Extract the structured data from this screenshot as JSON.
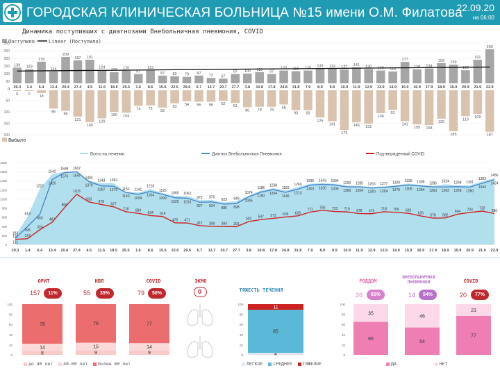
{
  "header": {
    "title": "ГОРОДСКАЯ КЛИНИЧЕСКАЯ БОЛЬНИЦА №15 имени О.М. Филатова",
    "date": "22.09.20",
    "time": "на 06:00"
  },
  "subtitle": "Динамика поступивших с диагнозами Внебольничная пневмония, COVID",
  "dates": [
    "29.3",
    "1.4",
    "6.4",
    "13.4",
    "20.4",
    "27.4",
    "4.5",
    "11.5",
    "18.5",
    "25.5",
    "1.6",
    "8.6",
    "15.6",
    "22.6",
    "29.6",
    "6.7",
    "13.7",
    "20.7",
    "27.7",
    "3.8",
    "10.8",
    "17.8",
    "24.8",
    "31.8",
    "7.9",
    "8.9",
    "9.9",
    "10.9",
    "11.9",
    "12.9",
    "13.9",
    "14.9",
    "15.9",
    "16.9",
    "17.9",
    "18.9",
    "19.9",
    "20.9",
    "21.9",
    "22.9"
  ],
  "colors": {
    "header": "#1f9bb3",
    "admitted": "#a6a6a6",
    "discharged": "#d9c3ae",
    "total_area": "#a8dcec",
    "pneumonia_line": "#4a86c8",
    "covid_line": "#cc2222",
    "red_pill": "#c0282d",
    "red_bar": "#ec6d6d",
    "pink_bar": "#ef7fb2",
    "pink_pill": "#d881c9",
    "blue_bar": "#5bb8d6"
  },
  "chart_data": [
    {
      "type": "bar",
      "name": "admitted",
      "legend": [
        "Поступило",
        "Linear (Поступило)"
      ],
      "ylim": [
        0,
        300
      ],
      "yticks": [
        0,
        50,
        100,
        150,
        200,
        250,
        300
      ],
      "values": [
        139,
        129,
        178,
        114,
        209,
        187,
        191,
        124,
        109,
        120,
        97,
        123,
        87,
        82,
        79,
        87,
        72,
        67,
        97,
        100,
        110,
        97,
        120,
        116,
        120,
        133,
        132,
        127,
        141,
        130,
        120,
        114,
        177,
        128,
        134,
        169,
        159,
        122,
        191,
        260
      ]
    },
    {
      "type": "bar",
      "name": "discharged",
      "legend": [
        "Выбыло"
      ],
      "ylim": [
        -200,
        0
      ],
      "yticks": [
        0,
        -50,
        -100,
        -150,
        -200
      ],
      "tick_labels": [
        "0",
        "50",
        "100",
        "150",
        "200"
      ],
      "values": [
        0,
        0,
        18,
        86,
        96,
        121,
        145,
        129,
        100,
        104,
        74,
        72,
        82,
        63,
        54,
        56,
        56,
        52,
        61,
        80,
        78,
        78,
        68,
        93,
        93,
        125,
        141,
        179,
        146,
        152,
        106,
        91,
        141,
        155,
        158,
        130,
        185,
        119,
        109,
        187
      ]
    },
    {
      "type": "line",
      "name": "inpatients",
      "ylim": [
        0,
        1800
      ],
      "yticks": [
        0,
        200,
        400,
        600,
        800,
        1000,
        1200,
        1400,
        1600,
        1800
      ],
      "legend": [
        "Всего на лечении",
        "Диагноз Внебольничная Пневмония",
        "Подтвержденный COVID"
      ],
      "series": [
        {
          "name": "Всего на лечении",
          "values": [
            183,
            613,
            1222,
            1542,
            1598,
            1607,
            1404,
            1343,
            1352,
            1152,
            1141,
            1218,
            1125,
            1065,
            1062,
            972,
            976,
            923,
            949,
            1074,
            1186,
            1238,
            1183,
            1260,
            1335,
            1343,
            1334,
            1290,
            1285,
            1263,
            1277,
            1300,
            1336,
            1309,
            1285,
            1324,
            1298,
            1301,
            1383,
            1456
          ]
        },
        {
          "name": "Диагноз Внебольничная Пневмония",
          "values": [
            131,
            395,
            663,
            1425,
            1576,
            1597,
            1379,
            1287,
            1279,
            1143,
            1099,
            1164,
            1099,
            1025,
            1016,
            927,
            934,
            886,
            898,
            1045,
            1150,
            1204,
            1146,
            1213,
            1303,
            1320,
            1306,
            1265,
            1264,
            1240,
            1254,
            1279,
            1306,
            1284,
            1263,
            1263,
            1268,
            1260,
            1344,
            1424
          ]
        },
        {
          "name": "Подтвержденный COVID",
          "values": [
            111,
            127,
            324,
            487,
            806,
            1103,
            933,
            878,
            827,
            718,
            684,
            634,
            614,
            475,
            471,
            412,
            398,
            393,
            391,
            502,
            547,
            573,
            603,
            628,
            711,
            750,
            723,
            715,
            678,
            675,
            718,
            706,
            683,
            626,
            578,
            582,
            664,
            703,
            732,
            680
          ]
        }
      ]
    },
    {
      "type": "bar",
      "name": "orit",
      "title": "ОРИТ",
      "count": "157",
      "pct": "11%",
      "stack": [
        {
          "label": "до 40 лет",
          "value": 8
        },
        {
          "label": "40-60 лет",
          "value": 14
        },
        {
          "label": "более 60 лет",
          "value": 78
        }
      ]
    },
    {
      "type": "bar",
      "name": "ivl",
      "title": "ИВЛ",
      "count": "55",
      "pct": "35%",
      "stack": [
        {
          "label": "до 40 лет",
          "value": 9
        },
        {
          "label": "40-60 лет",
          "value": 15
        },
        {
          "label": "более 60 лет",
          "value": 76
        }
      ]
    },
    {
      "type": "bar",
      "name": "covid-icu",
      "title": "COVID",
      "count": "79",
      "pct": "50%",
      "stack": [
        {
          "label": "до 40 лет",
          "value": 9
        },
        {
          "label": "40-60 лет",
          "value": 14
        },
        {
          "label": "более 60 лет",
          "value": 77
        }
      ]
    },
    {
      "type": "bar",
      "name": "severity",
      "title": "ТЯЖЕСТЬ ТЕЧЕНИЯ",
      "stack": [
        {
          "label": "ЛЕГКОЕ",
          "value": 4
        },
        {
          "label": "СРЕДНЕЕ",
          "value": 85
        },
        {
          "label": "ТЯЖЕЛОЕ",
          "value": 11
        }
      ]
    },
    {
      "type": "bar",
      "name": "rodd",
      "title": "РОДДОМ",
      "count": "26",
      "pct": "65%",
      "stack": [
        {
          "label": "ДА",
          "value": 65
        },
        {
          "label": "НЕТ",
          "value": 35
        }
      ]
    },
    {
      "type": "bar",
      "name": "pneumonia",
      "title": "ВНЕБОЛЬНИЧНАЯ ПНЕВМОНИЯ",
      "count": "14",
      "pct": "54%",
      "stack": [
        {
          "label": "ДА",
          "value": 54
        },
        {
          "label": "НЕТ",
          "value": 46
        }
      ]
    },
    {
      "type": "bar",
      "name": "covid-rodd",
      "title": "COVID",
      "count": "20",
      "pct": "77%",
      "stack": [
        {
          "label": "ДА",
          "value": 77
        },
        {
          "label": "НЕТ",
          "value": 23
        }
      ]
    }
  ],
  "ecmo": {
    "title": "ЭКМО",
    "value": "0"
  },
  "stack_ticks": [
    "0",
    "20",
    "40",
    "60",
    "80",
    "100"
  ],
  "legends": {
    "age": [
      "до 40 лет",
      "40-60 лет",
      "более 60 лет"
    ],
    "severity": [
      "ЛЕГКОЕ",
      "СРЕДНЕЕ",
      "ТЯЖЕЛОЕ"
    ],
    "rodd": [
      "ДА",
      "НЕТ"
    ]
  }
}
